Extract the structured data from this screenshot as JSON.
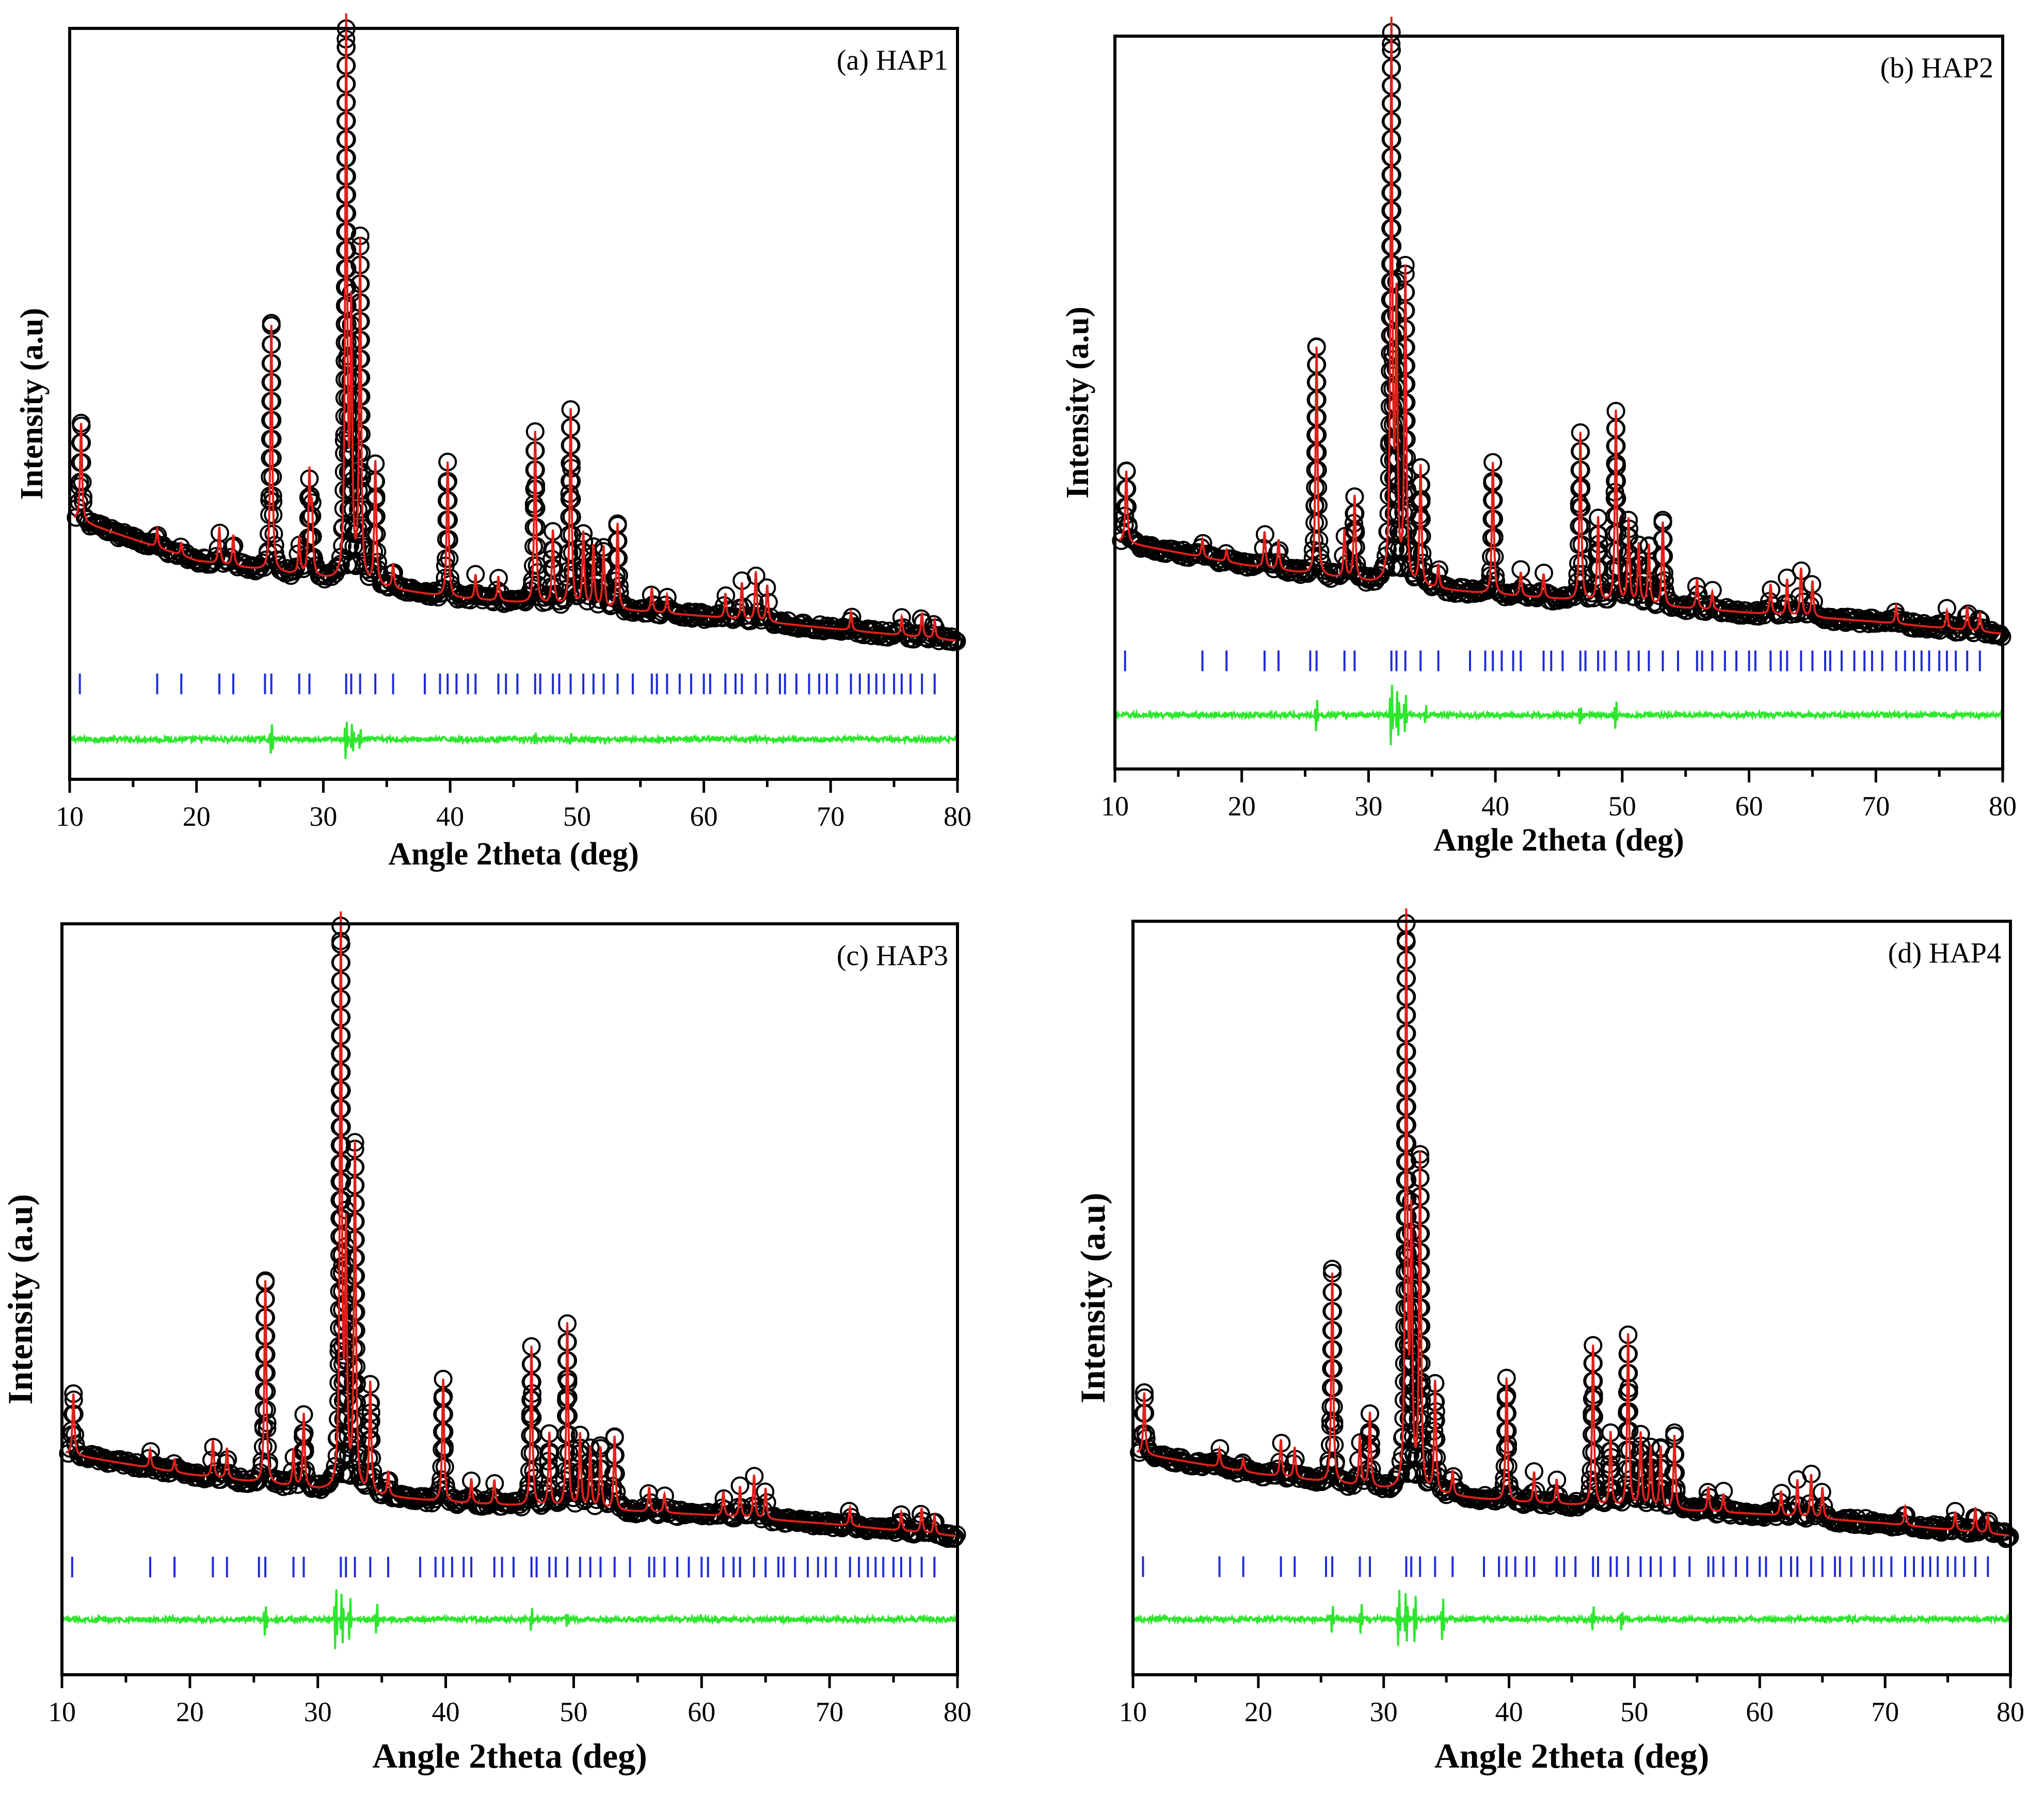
{
  "figure": {
    "colors": {
      "observed": "#000000",
      "calculated": "#e0201b",
      "bragg": "#1f2bd6",
      "difference": "#2ee62e",
      "frame": "#000000"
    }
  },
  "chart_data": [
    {
      "type": "line",
      "panel": "a",
      "title": "(a) HAP1",
      "xlabel": "Angle 2theta (deg)",
      "ylabel": "Intensity (a.u)",
      "xlim": [
        10,
        80
      ],
      "ylim": [
        -0.22,
        1.0
      ],
      "xticks": [
        10,
        20,
        30,
        40,
        50,
        60,
        70,
        80
      ],
      "xtick_labels": [
        "10",
        "20",
        "30",
        "40",
        "50",
        "60",
        "70",
        "80"
      ],
      "series": [
        {
          "name": "Observed",
          "style": "open-circles"
        },
        {
          "name": "Calculated",
          "style": "line"
        },
        {
          "name": "Bragg positions",
          "style": "ticks"
        },
        {
          "name": "Difference",
          "style": "line"
        }
      ],
      "background": [
        [
          10,
          0.205
        ],
        [
          20,
          0.135
        ],
        [
          30,
          0.105
        ],
        [
          40,
          0.075
        ],
        [
          50,
          0.06
        ],
        [
          60,
          0.045
        ],
        [
          70,
          0.025
        ],
        [
          80,
          0.005
        ]
      ],
      "peaks": [
        [
          10.9,
          0.16
        ],
        [
          16.9,
          0.03
        ],
        [
          18.8,
          0.02
        ],
        [
          21.8,
          0.06
        ],
        [
          22.9,
          0.05
        ],
        [
          25.9,
          0.4
        ],
        [
          28.1,
          0.06
        ],
        [
          28.9,
          0.16
        ],
        [
          29.1,
          0.1
        ],
        [
          31.8,
          0.9
        ],
        [
          32.2,
          0.42
        ],
        [
          32.9,
          0.55
        ],
        [
          34.1,
          0.2
        ],
        [
          35.5,
          0.04
        ],
        [
          39.8,
          0.22
        ],
        [
          42.0,
          0.04
        ],
        [
          43.8,
          0.04
        ],
        [
          46.7,
          0.28
        ],
        [
          48.1,
          0.12
        ],
        [
          49.5,
          0.32
        ],
        [
          50.5,
          0.12
        ],
        [
          51.3,
          0.1
        ],
        [
          52.1,
          0.1
        ],
        [
          53.2,
          0.14
        ],
        [
          55.9,
          0.04
        ],
        [
          57.1,
          0.03
        ],
        [
          61.7,
          0.04
        ],
        [
          63.0,
          0.06
        ],
        [
          64.1,
          0.08
        ],
        [
          65.0,
          0.06
        ],
        [
          71.6,
          0.03
        ],
        [
          75.6,
          0.03
        ],
        [
          77.2,
          0.04
        ],
        [
          78.2,
          0.03
        ]
      ],
      "bragg_positions": [
        10.8,
        16.9,
        18.8,
        21.8,
        22.9,
        25.4,
        25.9,
        28.1,
        28.9,
        31.8,
        32.2,
        32.9,
        34.1,
        35.5,
        38.0,
        39.2,
        39.8,
        40.5,
        41.4,
        42.0,
        43.8,
        44.4,
        45.3,
        46.7,
        47.1,
        48.1,
        48.6,
        49.5,
        50.5,
        51.3,
        52.1,
        53.2,
        54.4,
        55.9,
        56.3,
        57.1,
        58.1,
        59.0,
        60.0,
        60.5,
        61.7,
        62.5,
        63.0,
        64.1,
        65.0,
        66.0,
        66.4,
        67.3,
        68.3,
        69.1,
        69.7,
        70.5,
        71.6,
        72.3,
        73.0,
        73.6,
        74.2,
        75.0,
        75.6,
        76.3,
        77.2,
        78.2
      ],
      "bragg_level": -0.065,
      "difference_offset": -0.155,
      "difference_spikes": [
        [
          25.9,
          0.035
        ],
        [
          31.8,
          0.04
        ],
        [
          32.3,
          -0.03
        ],
        [
          32.9,
          0.025
        ],
        [
          46.7,
          0.015
        ],
        [
          49.5,
          0.012
        ]
      ]
    },
    {
      "type": "line",
      "panel": "b",
      "title": "(b) HAP2",
      "xlabel": "Angle 2theta (deg)",
      "ylabel": "Intensity (a.u)",
      "xlim": [
        10,
        80
      ],
      "ylim": [
        -0.22,
        1.0
      ],
      "xticks": [
        10,
        20,
        30,
        40,
        50,
        60,
        70,
        80
      ],
      "xtick_labels": [
        "10",
        "20",
        "30",
        "40",
        "50",
        "60",
        "70",
        "80"
      ],
      "series": [
        {
          "name": "Observed",
          "style": "open-circles"
        },
        {
          "name": "Calculated",
          "style": "line"
        },
        {
          "name": "Bragg positions",
          "style": "ticks"
        },
        {
          "name": "Difference",
          "style": "line"
        }
      ],
      "background": [
        [
          10,
          0.16
        ],
        [
          20,
          0.12
        ],
        [
          30,
          0.09
        ],
        [
          40,
          0.07
        ],
        [
          50,
          0.055
        ],
        [
          60,
          0.04
        ],
        [
          70,
          0.025
        ],
        [
          80,
          0.005
        ]
      ],
      "peaks": [
        [
          10.9,
          0.12
        ],
        [
          16.9,
          0.03
        ],
        [
          18.8,
          0.02
        ],
        [
          21.8,
          0.06
        ],
        [
          22.9,
          0.05
        ],
        [
          25.9,
          0.38
        ],
        [
          28.1,
          0.08
        ],
        [
          28.9,
          0.14
        ],
        [
          31.8,
          0.92
        ],
        [
          32.2,
          0.45
        ],
        [
          32.9,
          0.52
        ],
        [
          34.1,
          0.2
        ],
        [
          35.5,
          0.04
        ],
        [
          39.8,
          0.22
        ],
        [
          42.0,
          0.04
        ],
        [
          43.8,
          0.04
        ],
        [
          46.7,
          0.28
        ],
        [
          48.1,
          0.14
        ],
        [
          49.5,
          0.32
        ],
        [
          50.5,
          0.14
        ],
        [
          51.3,
          0.1
        ],
        [
          52.1,
          0.1
        ],
        [
          53.2,
          0.14
        ],
        [
          55.9,
          0.05
        ],
        [
          57.1,
          0.03
        ],
        [
          61.7,
          0.05
        ],
        [
          63.0,
          0.06
        ],
        [
          64.1,
          0.08
        ],
        [
          65.0,
          0.06
        ],
        [
          71.6,
          0.03
        ],
        [
          75.6,
          0.03
        ],
        [
          77.2,
          0.04
        ],
        [
          78.2,
          0.03
        ]
      ],
      "bragg_positions": [
        10.8,
        16.9,
        18.8,
        21.8,
        22.9,
        25.4,
        25.9,
        28.1,
        28.9,
        31.8,
        32.2,
        32.9,
        34.1,
        35.5,
        38.0,
        39.2,
        39.8,
        40.5,
        41.4,
        42.0,
        43.8,
        44.4,
        45.3,
        46.7,
        47.1,
        48.1,
        48.6,
        49.5,
        50.5,
        51.3,
        52.1,
        53.2,
        54.4,
        55.9,
        56.3,
        57.1,
        58.1,
        59.0,
        60.0,
        60.5,
        61.7,
        62.5,
        63.0,
        64.1,
        65.0,
        66.0,
        66.4,
        67.3,
        68.3,
        69.1,
        69.7,
        70.5,
        71.6,
        72.3,
        73.0,
        73.6,
        74.2,
        75.0,
        75.6,
        76.3,
        77.2,
        78.2
      ],
      "bragg_level": -0.04,
      "difference_offset": -0.13,
      "difference_spikes": [
        [
          25.9,
          0.03
        ],
        [
          31.8,
          0.07
        ],
        [
          32.3,
          -0.05
        ],
        [
          32.9,
          0.04
        ],
        [
          34.5,
          0.02
        ],
        [
          46.7,
          0.02
        ],
        [
          49.5,
          0.025
        ]
      ]
    },
    {
      "type": "line",
      "panel": "c",
      "title": "(c) HAP3",
      "xlabel": "Angle 2theta (deg)",
      "ylabel": "Intensity (a.u)",
      "xlim": [
        10,
        80
      ],
      "ylim": [
        -0.22,
        1.0
      ],
      "xticks": [
        10,
        20,
        30,
        40,
        50,
        60,
        70,
        80
      ],
      "xtick_labels": [
        "10",
        "20",
        "30",
        "40",
        "50",
        "60",
        "70",
        "80"
      ],
      "series": [
        {
          "name": "Observed",
          "style": "open-circles"
        },
        {
          "name": "Calculated",
          "style": "line"
        },
        {
          "name": "Bragg positions",
          "style": "ticks"
        },
        {
          "name": "Difference",
          "style": "line"
        }
      ],
      "background": [
        [
          10,
          0.14
        ],
        [
          20,
          0.105
        ],
        [
          30,
          0.08
        ],
        [
          40,
          0.06
        ],
        [
          50,
          0.05
        ],
        [
          60,
          0.04
        ],
        [
          70,
          0.025
        ],
        [
          80,
          0.005
        ]
      ],
      "peaks": [
        [
          10.9,
          0.1
        ],
        [
          16.9,
          0.03
        ],
        [
          18.8,
          0.02
        ],
        [
          21.8,
          0.06
        ],
        [
          22.9,
          0.05
        ],
        [
          25.9,
          0.33
        ],
        [
          28.1,
          0.06
        ],
        [
          28.9,
          0.12
        ],
        [
          31.8,
          0.92
        ],
        [
          32.2,
          0.4
        ],
        [
          32.9,
          0.56
        ],
        [
          34.1,
          0.18
        ],
        [
          35.5,
          0.04
        ],
        [
          39.8,
          0.2
        ],
        [
          42.0,
          0.04
        ],
        [
          43.8,
          0.04
        ],
        [
          46.7,
          0.26
        ],
        [
          48.1,
          0.12
        ],
        [
          49.5,
          0.3
        ],
        [
          50.5,
          0.12
        ],
        [
          51.3,
          0.1
        ],
        [
          52.1,
          0.1
        ],
        [
          53.2,
          0.12
        ],
        [
          55.9,
          0.04
        ],
        [
          57.1,
          0.03
        ],
        [
          61.7,
          0.04
        ],
        [
          63.0,
          0.05
        ],
        [
          64.1,
          0.07
        ],
        [
          65.0,
          0.05
        ],
        [
          71.6,
          0.03
        ],
        [
          75.6,
          0.03
        ],
        [
          77.2,
          0.04
        ],
        [
          78.2,
          0.03
        ]
      ],
      "bragg_positions": [
        10.8,
        16.9,
        18.8,
        21.8,
        22.9,
        25.4,
        25.9,
        28.1,
        28.9,
        31.8,
        32.2,
        32.9,
        34.1,
        35.5,
        38.0,
        39.2,
        39.8,
        40.5,
        41.4,
        42.0,
        43.8,
        44.4,
        45.3,
        46.7,
        47.1,
        48.1,
        48.6,
        49.5,
        50.5,
        51.3,
        52.1,
        53.2,
        54.4,
        55.9,
        56.3,
        57.1,
        58.1,
        59.0,
        60.0,
        60.5,
        61.7,
        62.5,
        63.0,
        64.1,
        65.0,
        66.0,
        66.4,
        67.3,
        68.3,
        69.1,
        69.7,
        70.5,
        71.6,
        72.3,
        73.0,
        73.6,
        74.2,
        75.0,
        75.6,
        76.3,
        77.2,
        78.2
      ],
      "bragg_level": -0.045,
      "difference_offset": -0.13,
      "difference_spikes": [
        [
          25.9,
          0.03
        ],
        [
          31.4,
          0.06
        ],
        [
          31.9,
          -0.05
        ],
        [
          32.5,
          0.04
        ],
        [
          34.6,
          0.03
        ],
        [
          46.7,
          0.02
        ],
        [
          49.5,
          0.015
        ]
      ]
    },
    {
      "type": "line",
      "panel": "d",
      "title": "(d) HAP4",
      "xlabel": "Angle 2theta (deg)",
      "ylabel": "Intensity (a.u)",
      "xlim": [
        10,
        80
      ],
      "ylim": [
        -0.22,
        1.0
      ],
      "xticks": [
        10,
        20,
        30,
        40,
        50,
        60,
        70,
        80
      ],
      "xtick_labels": [
        "10",
        "20",
        "30",
        "40",
        "50",
        "60",
        "70",
        "80"
      ],
      "series": [
        {
          "name": "Observed",
          "style": "open-circles"
        },
        {
          "name": "Calculated",
          "style": "line"
        },
        {
          "name": "Bragg positions",
          "style": "ticks"
        },
        {
          "name": "Difference",
          "style": "line"
        }
      ],
      "background": [
        [
          10,
          0.14
        ],
        [
          20,
          0.105
        ],
        [
          30,
          0.08
        ],
        [
          40,
          0.06
        ],
        [
          50,
          0.05
        ],
        [
          60,
          0.04
        ],
        [
          70,
          0.025
        ],
        [
          80,
          0.005
        ]
      ],
      "peaks": [
        [
          10.9,
          0.1
        ],
        [
          16.9,
          0.03
        ],
        [
          18.8,
          0.02
        ],
        [
          21.8,
          0.06
        ],
        [
          22.9,
          0.05
        ],
        [
          25.9,
          0.34
        ],
        [
          28.1,
          0.08
        ],
        [
          28.9,
          0.12
        ],
        [
          31.8,
          0.92
        ],
        [
          32.2,
          0.42
        ],
        [
          32.9,
          0.54
        ],
        [
          34.1,
          0.18
        ],
        [
          35.5,
          0.04
        ],
        [
          39.8,
          0.2
        ],
        [
          42.0,
          0.05
        ],
        [
          43.8,
          0.04
        ],
        [
          46.7,
          0.26
        ],
        [
          48.1,
          0.12
        ],
        [
          49.5,
          0.28
        ],
        [
          50.5,
          0.12
        ],
        [
          51.3,
          0.1
        ],
        [
          52.1,
          0.1
        ],
        [
          53.2,
          0.12
        ],
        [
          55.9,
          0.04
        ],
        [
          57.1,
          0.03
        ],
        [
          61.7,
          0.04
        ],
        [
          63.0,
          0.06
        ],
        [
          64.1,
          0.07
        ],
        [
          65.0,
          0.05
        ],
        [
          71.6,
          0.03
        ],
        [
          75.6,
          0.03
        ],
        [
          77.2,
          0.04
        ],
        [
          78.2,
          0.03
        ]
      ],
      "bragg_positions": [
        10.8,
        16.9,
        18.8,
        21.8,
        22.9,
        25.4,
        25.9,
        28.1,
        28.9,
        31.8,
        32.2,
        32.9,
        34.1,
        35.5,
        38.0,
        39.2,
        39.8,
        40.5,
        41.4,
        42.0,
        43.8,
        44.4,
        45.3,
        46.7,
        47.1,
        48.1,
        48.6,
        49.5,
        50.5,
        51.3,
        52.1,
        53.2,
        54.4,
        55.9,
        56.3,
        57.1,
        58.1,
        59.0,
        60.0,
        60.5,
        61.7,
        62.5,
        63.0,
        64.1,
        65.0,
        66.0,
        66.4,
        67.3,
        68.3,
        69.1,
        69.7,
        70.5,
        71.6,
        72.3,
        73.0,
        73.6,
        74.2,
        75.0,
        75.6,
        76.3,
        77.2,
        78.2
      ],
      "bragg_level": -0.045,
      "difference_offset": -0.13,
      "difference_spikes": [
        [
          25.9,
          0.025
        ],
        [
          28.2,
          0.03
        ],
        [
          31.2,
          0.06
        ],
        [
          31.8,
          -0.05
        ],
        [
          32.5,
          0.05
        ],
        [
          34.7,
          0.04
        ],
        [
          46.7,
          0.025
        ],
        [
          49.0,
          0.02
        ]
      ]
    }
  ]
}
